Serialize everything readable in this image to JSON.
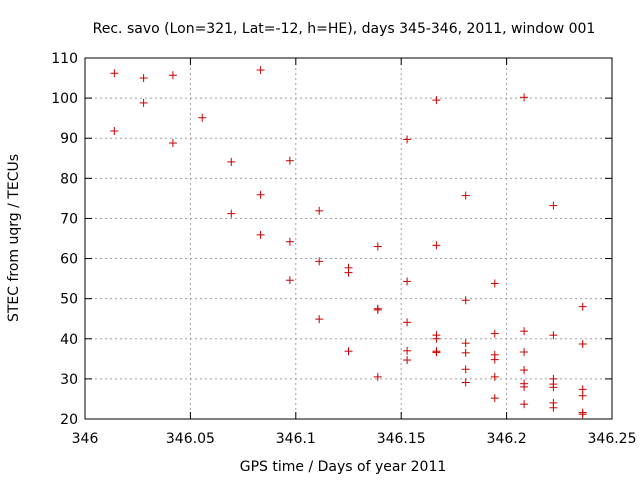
{
  "chart_data": {
    "type": "scatter",
    "title": "Rec. savo (Lon=321, Lat=-12, h=HE), days 345-346, 2011, window 001",
    "xlabel": "GPS time / Days of year 2011",
    "ylabel": "STEC from uqrg / TECUs",
    "xlim": [
      346,
      346.25
    ],
    "ylim": [
      20,
      110
    ],
    "xticks": [
      346,
      346.05,
      346.1,
      346.15,
      346.2,
      346.25
    ],
    "xtick_labels": [
      "346",
      "346.05",
      "346.1",
      "346.15",
      "346.2",
      "346.25"
    ],
    "yticks": [
      20,
      30,
      40,
      50,
      60,
      70,
      80,
      90,
      100,
      110
    ],
    "ytick_labels": [
      "20",
      "30",
      "40",
      "50",
      "60",
      "70",
      "80",
      "90",
      "100",
      "110"
    ],
    "grid": true,
    "marker": "+",
    "color": "#cc0000",
    "points": [
      [
        346.0139,
        106.2
      ],
      [
        346.0139,
        91.8
      ],
      [
        346.0278,
        105.0
      ],
      [
        346.0278,
        98.8
      ],
      [
        346.0417,
        105.7
      ],
      [
        346.0417,
        88.8
      ],
      [
        346.0556,
        95.1
      ],
      [
        346.0694,
        84.1
      ],
      [
        346.0694,
        71.2
      ],
      [
        346.0833,
        107.0
      ],
      [
        346.0833,
        75.9
      ],
      [
        346.0833,
        65.9
      ],
      [
        346.0972,
        84.4
      ],
      [
        346.0972,
        64.2
      ],
      [
        346.0972,
        54.6
      ],
      [
        346.1111,
        71.9
      ],
      [
        346.1111,
        59.3
      ],
      [
        346.1111,
        44.9
      ],
      [
        346.125,
        57.7
      ],
      [
        346.125,
        56.5
      ],
      [
        346.125,
        36.9
      ],
      [
        346.1389,
        63.0
      ],
      [
        346.1389,
        47.5
      ],
      [
        346.1389,
        47.2
      ],
      [
        346.1389,
        30.5
      ],
      [
        346.1528,
        89.7
      ],
      [
        346.1528,
        54.3
      ],
      [
        346.1528,
        44.1
      ],
      [
        346.1528,
        37.0
      ],
      [
        346.1528,
        34.7
      ],
      [
        346.1667,
        99.5
      ],
      [
        346.1667,
        63.3
      ],
      [
        346.1667,
        40.9
      ],
      [
        346.1667,
        40.0
      ],
      [
        346.1667,
        36.9
      ],
      [
        346.1667,
        36.6
      ],
      [
        346.1806,
        75.7
      ],
      [
        346.1806,
        49.6
      ],
      [
        346.1806,
        38.9
      ],
      [
        346.1806,
        36.5
      ],
      [
        346.1806,
        32.4
      ],
      [
        346.1806,
        29.1
      ],
      [
        346.1944,
        53.8
      ],
      [
        346.1944,
        41.3
      ],
      [
        346.1944,
        36.0
      ],
      [
        346.1944,
        34.8
      ],
      [
        346.1944,
        30.5
      ],
      [
        346.1944,
        25.2
      ],
      [
        346.2083,
        100.2
      ],
      [
        346.2083,
        41.9
      ],
      [
        346.2083,
        36.7
      ],
      [
        346.2083,
        32.2
      ],
      [
        346.2083,
        28.8
      ],
      [
        346.2083,
        28.0
      ],
      [
        346.2083,
        23.7
      ],
      [
        346.2222,
        73.2
      ],
      [
        346.2222,
        40.9
      ],
      [
        346.2222,
        30.0
      ],
      [
        346.2222,
        28.7
      ],
      [
        346.2222,
        27.9
      ],
      [
        346.2222,
        24.0
      ],
      [
        346.2222,
        22.8
      ],
      [
        346.2361,
        48.0
      ],
      [
        346.2361,
        38.7
      ],
      [
        346.2361,
        27.4
      ],
      [
        346.2361,
        25.8
      ],
      [
        346.2361,
        21.6
      ],
      [
        346.2361,
        21.2
      ]
    ]
  }
}
